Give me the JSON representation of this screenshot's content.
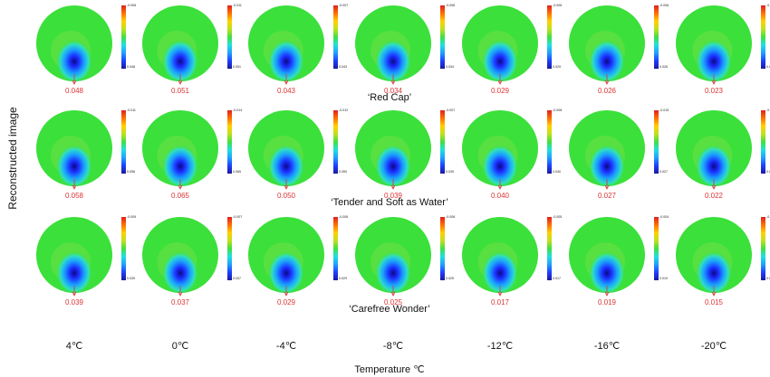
{
  "y_axis_label": "Reconstructed image",
  "x_axis_label": "Temperature ℃",
  "temperatures": [
    "4℃",
    "0℃",
    "-4℃",
    "-8℃",
    "-12℃",
    "-16℃",
    "-20℃"
  ],
  "rows": [
    {
      "variety": "‘Red Cap’",
      "values": [
        "0.048",
        "0.051",
        "0.043",
        "0.034",
        "0.029",
        "0.026",
        "0.023"
      ],
      "colorbar_max": [
        "-0.006",
        "-0.011",
        "-0.007",
        "-0.006",
        "-0.006",
        "-0.006",
        "-0.023"
      ],
      "colorbar_min": [
        "0.048",
        "0.051",
        "0.043",
        "0.034",
        "0.029",
        "0.026",
        "0.023"
      ]
    },
    {
      "variety": "‘Tender and Soft as Water’",
      "values": [
        "0.058",
        "0.065",
        "0.050",
        "0.039",
        "0.040",
        "0.027",
        "0.022"
      ],
      "colorbar_max": [
        "-0.011",
        "-0.014",
        "-0.012",
        "-0.007",
        "-0.008",
        "-0.015",
        "-0.005"
      ],
      "colorbar_min": [
        "0.058",
        "0.065",
        "0.050",
        "0.039",
        "0.040",
        "0.027",
        "0.022"
      ]
    },
    {
      "variety": "‘Carefree Wonder’",
      "values": [
        "0.039",
        "0.037",
        "0.029",
        "0.025",
        "0.017",
        "0.019",
        "0.015"
      ],
      "colorbar_max": [
        "-0.009",
        "-0.007",
        "-0.006",
        "-0.006",
        "-0.005",
        "-0.004",
        "-0.003"
      ],
      "colorbar_min": [
        "0.039",
        "0.037",
        "0.029",
        "0.025",
        "0.017",
        "0.019",
        "0.015"
      ]
    }
  ],
  "colors": {
    "field_green": "#3be03b",
    "value_text": "#dd3333",
    "arrow": "#dd3333"
  }
}
